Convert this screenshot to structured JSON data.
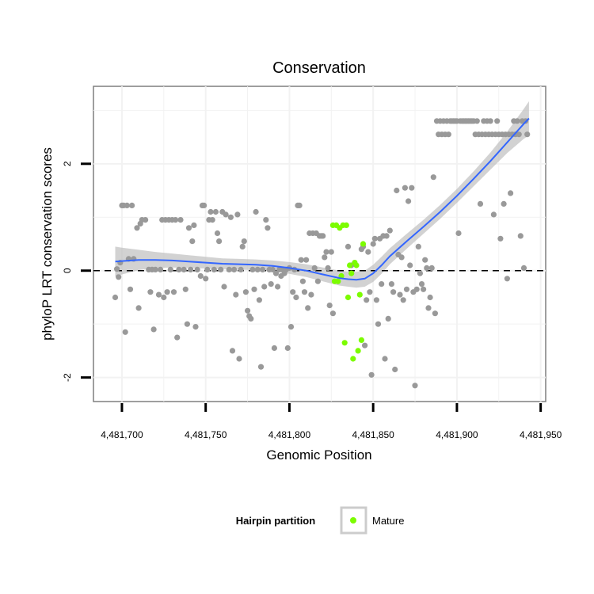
{
  "chart_data": {
    "type": "scatter",
    "title": "Conservation",
    "xlabel": "Genomic Position",
    "ylabel": "phyloP LRT conservation scores",
    "xlim": [
      4481683,
      4481953
    ],
    "ylim": [
      -2.45,
      3.45
    ],
    "x_ticks": [
      4481700,
      4481750,
      4481800,
      4481850,
      4481900,
      4481950
    ],
    "x_tick_labels": [
      "4,481,700",
      "4,481,750",
      "4,481,800",
      "4,481,850",
      "4,481,900",
      "4,481,950"
    ],
    "y_ticks": [
      -2,
      0,
      2
    ],
    "y_tick_labels": [
      "-2",
      "0",
      "2"
    ],
    "grid": true,
    "reference_line": {
      "y": 0,
      "style": "dashed"
    },
    "legend": {
      "title": "Hairpin partition",
      "position": "bottom",
      "entries": [
        {
          "label": "Mature",
          "color": "#7cfc00"
        }
      ]
    },
    "colors": {
      "other": "#999999",
      "mature": "#7cfc00",
      "smooth": "#3366ff",
      "band": "#bfbfbf"
    },
    "series": [
      {
        "name": "",
        "color": "#999999",
        "points": [
          [
            4481696,
            -0.5
          ],
          [
            4481697,
            0.03
          ],
          [
            4481698,
            -0.12
          ],
          [
            4481699,
            0.15
          ],
          [
            4481700,
            1.22
          ],
          [
            4481701,
            1.22
          ],
          [
            4481702,
            -1.15
          ],
          [
            4481703,
            1.22
          ],
          [
            4481704,
            0.22
          ],
          [
            4481705,
            -0.35
          ],
          [
            4481706,
            1.22
          ],
          [
            4481707,
            0.22
          ],
          [
            4481709,
            0.8
          ],
          [
            4481710,
            -0.7
          ],
          [
            4481711,
            0.88
          ],
          [
            4481712,
            0.95
          ],
          [
            4481714,
            0.95
          ],
          [
            4481716,
            0.02
          ],
          [
            4481717,
            -0.4
          ],
          [
            4481718,
            0.02
          ],
          [
            4481719,
            -1.1
          ],
          [
            4481720,
            0.02
          ],
          [
            4481722,
            -0.45
          ],
          [
            4481723,
            0.02
          ],
          [
            4481724,
            0.95
          ],
          [
            4481725,
            -0.5
          ],
          [
            4481726,
            0.95
          ],
          [
            4481727,
            -0.4
          ],
          [
            4481728,
            0.95
          ],
          [
            4481729,
            0.02
          ],
          [
            4481730,
            0.95
          ],
          [
            4481731,
            -0.4
          ],
          [
            4481732,
            0.95
          ],
          [
            4481733,
            -1.25
          ],
          [
            4481734,
            0.02
          ],
          [
            4481735,
            0.95
          ],
          [
            4481737,
            0.02
          ],
          [
            4481738,
            -0.35
          ],
          [
            4481739,
            -1.0
          ],
          [
            4481740,
            0.8
          ],
          [
            4481741,
            0.02
          ],
          [
            4481742,
            0.55
          ],
          [
            4481743,
            0.85
          ],
          [
            4481744,
            -1.05
          ],
          [
            4481745,
            0.02
          ],
          [
            4481747,
            -0.1
          ],
          [
            4481748,
            1.22
          ],
          [
            4481749,
            1.22
          ],
          [
            4481750,
            -0.15
          ],
          [
            4481751,
            0.02
          ],
          [
            4481752,
            0.95
          ],
          [
            4481753,
            1.1
          ],
          [
            4481754,
            0.95
          ],
          [
            4481755,
            0.02
          ],
          [
            4481756,
            1.1
          ],
          [
            4481757,
            0.7
          ],
          [
            4481758,
            0.55
          ],
          [
            4481759,
            0.02
          ],
          [
            4481760,
            1.1
          ],
          [
            4481761,
            -0.3
          ],
          [
            4481762,
            1.05
          ],
          [
            4481764,
            0.02
          ],
          [
            4481765,
            1.0
          ],
          [
            4481766,
            -1.5
          ],
          [
            4481767,
            0.02
          ],
          [
            4481768,
            -0.45
          ],
          [
            4481769,
            1.05
          ],
          [
            4481770,
            -1.65
          ],
          [
            4481771,
            0.02
          ],
          [
            4481772,
            0.45
          ],
          [
            4481773,
            0.55
          ],
          [
            4481774,
            -0.4
          ],
          [
            4481775,
            -0.75
          ],
          [
            4481776,
            -0.85
          ],
          [
            4481777,
            -0.9
          ],
          [
            4481778,
            0.02
          ],
          [
            4481779,
            -0.35
          ],
          [
            4481780,
            1.1
          ],
          [
            4481781,
            0.02
          ],
          [
            4481782,
            -0.55
          ],
          [
            4481783,
            -1.8
          ],
          [
            4481784,
            0.02
          ],
          [
            4481785,
            -0.3
          ],
          [
            4481786,
            0.95
          ],
          [
            4481787,
            0.8
          ],
          [
            4481788,
            0.02
          ],
          [
            4481789,
            -0.25
          ],
          [
            4481790,
            0.02
          ],
          [
            4481791,
            -1.45
          ],
          [
            4481792,
            -0.05
          ],
          [
            4481793,
            -0.3
          ],
          [
            4481794,
            0.02
          ],
          [
            4481795,
            -0.1
          ],
          [
            4481796,
            0.02
          ],
          [
            4481797,
            -0.05
          ],
          [
            4481798,
            0.02
          ],
          [
            4481799,
            -1.45
          ],
          [
            4481800,
            0.05
          ],
          [
            4481801,
            -1.05
          ],
          [
            4481802,
            -0.4
          ],
          [
            4481803,
            0.02
          ],
          [
            4481804,
            -0.5
          ],
          [
            4481805,
            1.22
          ],
          [
            4481806,
            1.22
          ],
          [
            4481807,
            0.2
          ],
          [
            4481808,
            -0.2
          ],
          [
            4481809,
            -0.4
          ],
          [
            4481810,
            0.2
          ],
          [
            4481811,
            -0.7
          ],
          [
            4481812,
            0.7
          ],
          [
            4481813,
            -0.45
          ],
          [
            4481814,
            0.7
          ],
          [
            4481815,
            0.05
          ],
          [
            4481816,
            0.7
          ],
          [
            4481817,
            -0.2
          ],
          [
            4481818,
            0.65
          ],
          [
            4481819,
            0.65
          ],
          [
            4481820,
            0.65
          ],
          [
            4481821,
            0.25
          ],
          [
            4481822,
            0.35
          ],
          [
            4481823,
            0.05
          ],
          [
            4481824,
            -0.65
          ],
          [
            4481825,
            0.35
          ],
          [
            4481826,
            -0.8
          ],
          [
            4481835,
            0.45
          ],
          [
            4481837,
            0.1
          ],
          [
            4481843,
            0.4
          ],
          [
            4481844,
            0.45
          ],
          [
            4481845,
            -1.4
          ],
          [
            4481846,
            -0.55
          ],
          [
            4481847,
            0.35
          ],
          [
            4481848,
            -0.4
          ],
          [
            4481849,
            -1.95
          ],
          [
            4481850,
            0.5
          ],
          [
            4481851,
            0.6
          ],
          [
            4481852,
            -0.55
          ],
          [
            4481853,
            -1.0
          ],
          [
            4481854,
            0.6
          ],
          [
            4481855,
            -0.25
          ],
          [
            4481856,
            0.65
          ],
          [
            4481857,
            -1.65
          ],
          [
            4481858,
            0.65
          ],
          [
            4481859,
            -0.9
          ],
          [
            4481860,
            0.75
          ],
          [
            4481861,
            -0.25
          ],
          [
            4481862,
            -0.4
          ],
          [
            4481863,
            -1.85
          ],
          [
            4481864,
            1.5
          ],
          [
            4481865,
            0.3
          ],
          [
            4481866,
            -0.45
          ],
          [
            4481867,
            0.25
          ],
          [
            4481868,
            -0.55
          ],
          [
            4481869,
            1.55
          ],
          [
            4481870,
            -0.35
          ],
          [
            4481871,
            1.3
          ],
          [
            4481872,
            0.1
          ],
          [
            4481873,
            1.55
          ],
          [
            4481874,
            -0.4
          ],
          [
            4481875,
            -2.15
          ],
          [
            4481876,
            -0.35
          ],
          [
            4481877,
            0.45
          ],
          [
            4481878,
            -0.05
          ],
          [
            4481879,
            -0.25
          ],
          [
            4481880,
            -0.35
          ],
          [
            4481881,
            0.2
          ],
          [
            4481882,
            0.05
          ],
          [
            4481883,
            -0.7
          ],
          [
            4481884,
            -0.5
          ],
          [
            4481885,
            0.05
          ],
          [
            4481886,
            1.75
          ],
          [
            4481887,
            -0.8
          ],
          [
            4481888,
            2.8
          ],
          [
            4481889,
            2.55
          ],
          [
            4481890,
            2.8
          ],
          [
            4481891,
            2.55
          ],
          [
            4481892,
            2.8
          ],
          [
            4481893,
            2.55
          ],
          [
            4481894,
            2.8
          ],
          [
            4481895,
            2.55
          ],
          [
            4481896,
            2.8
          ],
          [
            4481897,
            2.8
          ],
          [
            4481898,
            2.8
          ],
          [
            4481899,
            2.8
          ],
          [
            4481900,
            2.8
          ],
          [
            4481901,
            0.7
          ],
          [
            4481902,
            2.8
          ],
          [
            4481903,
            2.8
          ],
          [
            4481904,
            2.8
          ],
          [
            4481905,
            2.8
          ],
          [
            4481906,
            2.8
          ],
          [
            4481907,
            2.8
          ],
          [
            4481908,
            2.8
          ],
          [
            4481909,
            2.8
          ],
          [
            4481910,
            2.8
          ],
          [
            4481911,
            2.55
          ],
          [
            4481912,
            2.8
          ],
          [
            4481913,
            2.55
          ],
          [
            4481914,
            1.25
          ],
          [
            4481915,
            2.55
          ],
          [
            4481916,
            2.8
          ],
          [
            4481917,
            2.55
          ],
          [
            4481918,
            2.8
          ],
          [
            4481919,
            2.55
          ],
          [
            4481920,
            2.8
          ],
          [
            4481921,
            2.55
          ],
          [
            4481922,
            1.05
          ],
          [
            4481923,
            2.55
          ],
          [
            4481924,
            2.8
          ],
          [
            4481925,
            2.55
          ],
          [
            4481926,
            0.6
          ],
          [
            4481927,
            2.55
          ],
          [
            4481928,
            1.25
          ],
          [
            4481929,
            2.55
          ],
          [
            4481930,
            -0.15
          ],
          [
            4481931,
            2.55
          ],
          [
            4481932,
            1.45
          ],
          [
            4481933,
            2.55
          ],
          [
            4481934,
            2.8
          ],
          [
            4481935,
            2.55
          ],
          [
            4481936,
            2.8
          ],
          [
            4481937,
            2.55
          ],
          [
            4481938,
            0.65
          ],
          [
            4481939,
            2.8
          ],
          [
            4481940,
            0.05
          ],
          [
            4481941,
            2.8
          ],
          [
            4481942,
            2.55
          ]
        ]
      },
      {
        "name": "Mature",
        "color": "#7cfc00",
        "points": [
          [
            4481826,
            0.85
          ],
          [
            4481827,
            -0.2
          ],
          [
            4481828,
            0.85
          ],
          [
            4481829,
            -0.2
          ],
          [
            4481830,
            0.8
          ],
          [
            4481831,
            -0.1
          ],
          [
            4481832,
            0.85
          ],
          [
            4481833,
            -1.35
          ],
          [
            4481834,
            0.85
          ],
          [
            4481835,
            -0.5
          ],
          [
            4481836,
            0.1
          ],
          [
            4481837,
            -0.05
          ],
          [
            4481838,
            -1.65
          ],
          [
            4481839,
            0.15
          ],
          [
            4481840,
            0.1
          ],
          [
            4481841,
            -1.5
          ],
          [
            4481842,
            -0.45
          ],
          [
            4481843,
            -1.3
          ],
          [
            4481844,
            0.5
          ]
        ]
      }
    ],
    "smooth_fit": {
      "x": [
        4481696,
        4481700,
        4481710,
        4481720,
        4481730,
        4481740,
        4481750,
        4481760,
        4481770,
        4481780,
        4481790,
        4481800,
        4481810,
        4481820,
        4481830,
        4481835,
        4481840,
        4481845,
        4481850,
        4481855,
        4481860,
        4481870,
        4481880,
        4481890,
        4481900,
        4481910,
        4481920,
        4481930,
        4481940,
        4481943
      ],
      "y": [
        0.17,
        0.18,
        0.2,
        0.2,
        0.19,
        0.17,
        0.15,
        0.13,
        0.12,
        0.11,
        0.09,
        0.05,
        0.0,
        -0.07,
        -0.14,
        -0.16,
        -0.17,
        -0.15,
        -0.05,
        0.1,
        0.27,
        0.55,
        0.82,
        1.1,
        1.4,
        1.72,
        2.05,
        2.4,
        2.75,
        2.85
      ],
      "se": [
        0.28,
        0.25,
        0.19,
        0.15,
        0.13,
        0.12,
        0.11,
        0.1,
        0.1,
        0.1,
        0.1,
        0.11,
        0.12,
        0.13,
        0.14,
        0.14,
        0.15,
        0.15,
        0.16,
        0.16,
        0.15,
        0.14,
        0.13,
        0.13,
        0.13,
        0.14,
        0.16,
        0.2,
        0.28,
        0.32
      ]
    }
  }
}
